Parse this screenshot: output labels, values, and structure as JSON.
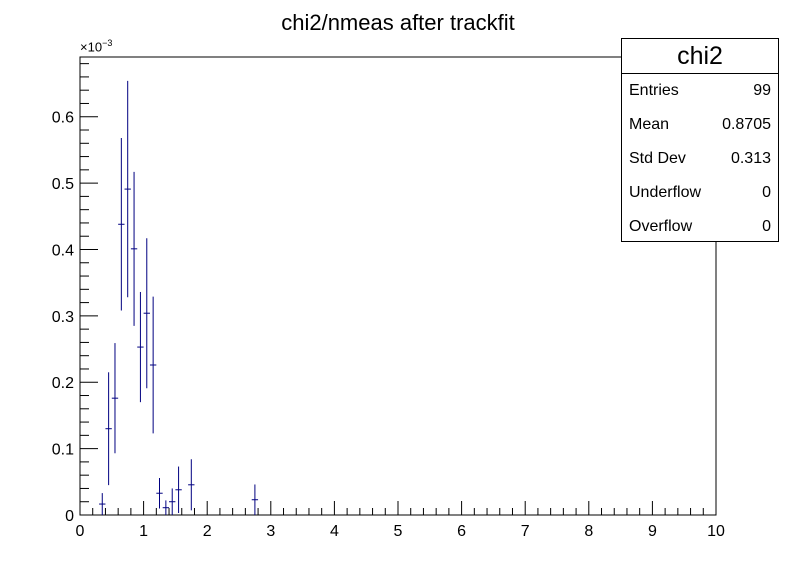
{
  "chart_data": {
    "type": "scatter",
    "title": "chi2/nmeas after trackfit",
    "xlabel": "",
    "ylabel": "",
    "xlim": [
      0,
      10
    ],
    "ylim": [
      0,
      0.00069
    ],
    "x_ticks": [
      "0",
      "1",
      "2",
      "3",
      "4",
      "5",
      "6",
      "7",
      "8",
      "9",
      "10"
    ],
    "y_ticks": [
      "0",
      "0.1",
      "0.2",
      "0.3",
      "0.4",
      "0.5",
      "0.6"
    ],
    "y_exponent": {
      "base": "×10",
      "power": "−3"
    },
    "grid": false,
    "series_color": "#000080",
    "bin_width": 0.1,
    "points": [
      {
        "x": 0.35,
        "y": 1.65e-05,
        "err": 1.65e-05
      },
      {
        "x": 0.45,
        "y": 0.00013,
        "err": 8.5e-05
      },
      {
        "x": 0.55,
        "y": 0.000176,
        "err": 8.3e-05
      },
      {
        "x": 0.65,
        "y": 0.000438,
        "err": 0.00013
      },
      {
        "x": 0.75,
        "y": 0.000491,
        "err": 0.000163
      },
      {
        "x": 0.85,
        "y": 0.000401,
        "err": 0.000116
      },
      {
        "x": 0.95,
        "y": 0.000253,
        "err": 8.3e-05
      },
      {
        "x": 1.05,
        "y": 0.000304,
        "err": 0.000113
      },
      {
        "x": 1.15,
        "y": 0.000226,
        "err": 0.000103
      },
      {
        "x": 1.25,
        "y": 3.28e-05,
        "err": 2.3e-05
      },
      {
        "x": 1.35,
        "y": 1.1e-05,
        "err": 1.1e-05
      },
      {
        "x": 1.45,
        "y": 2e-05,
        "err": 2e-05
      },
      {
        "x": 1.55,
        "y": 3.8e-05,
        "err": 3.5e-05
      },
      {
        "x": 1.75,
        "y": 4.55e-05,
        "err": 3.85e-05
      },
      {
        "x": 2.75,
        "y": 2.3e-05,
        "err": 2.3e-05
      }
    ]
  },
  "stats": {
    "name": "chi2",
    "rows": [
      {
        "label": "Entries",
        "value": "99"
      },
      {
        "label": "Mean",
        "value": "0.8705"
      },
      {
        "label": "Std Dev",
        "value": "0.313"
      },
      {
        "label": "Underflow",
        "value": "0"
      },
      {
        "label": "Overflow",
        "value": "0"
      }
    ]
  }
}
